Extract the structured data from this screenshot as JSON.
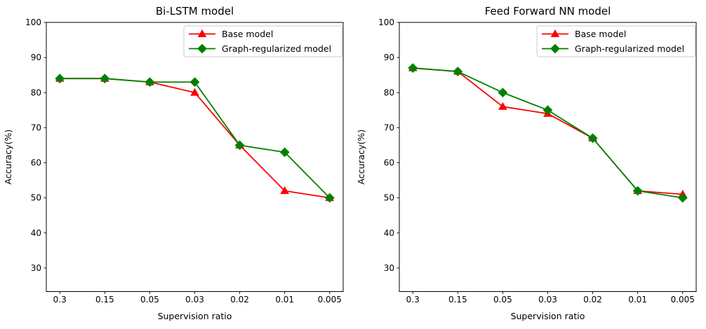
{
  "figure": {
    "background": "#ffffff",
    "axis_color": "#000000",
    "legend_border_color": "#cccccc",
    "legend_background": "rgba(255,255,255,0.85)"
  },
  "chart_data": [
    {
      "type": "line",
      "title": "Bi-LSTM model",
      "xlabel": "Supervision ratio",
      "ylabel": "Accuracy(%)",
      "categories": [
        "0.3",
        "0.15",
        "0.05",
        "0.03",
        "0.02",
        "0.01",
        "0.005"
      ],
      "yticks": [
        30,
        40,
        50,
        60,
        70,
        80,
        90,
        100
      ],
      "ylim": [
        23.3,
        100
      ],
      "grid": false,
      "legend_position": "upper right",
      "series": [
        {
          "name": "Base model",
          "color": "#ff0000",
          "marker": "triangle",
          "values": [
            84,
            84,
            83,
            80,
            65,
            52,
            50
          ]
        },
        {
          "name": "Graph-regularized model",
          "color": "#008000",
          "marker": "diamond",
          "values": [
            84,
            84,
            83,
            83,
            65,
            63,
            50
          ]
        }
      ]
    },
    {
      "type": "line",
      "title": "Feed Forward NN model",
      "xlabel": "Supervision ratio",
      "ylabel": "Accuracy(%)",
      "categories": [
        "0.3",
        "0.15",
        "0.05",
        "0.03",
        "0.02",
        "0.01",
        "0.005"
      ],
      "yticks": [
        30,
        40,
        50,
        60,
        70,
        80,
        90,
        100
      ],
      "ylim": [
        23.3,
        100
      ],
      "grid": false,
      "legend_position": "upper right",
      "series": [
        {
          "name": "Base model",
          "color": "#ff0000",
          "marker": "triangle",
          "values": [
            87,
            86,
            76,
            74,
            67,
            52,
            51
          ]
        },
        {
          "name": "Graph-regularized model",
          "color": "#008000",
          "marker": "diamond",
          "values": [
            87,
            86,
            80,
            75,
            67,
            52,
            50
          ]
        }
      ]
    }
  ]
}
